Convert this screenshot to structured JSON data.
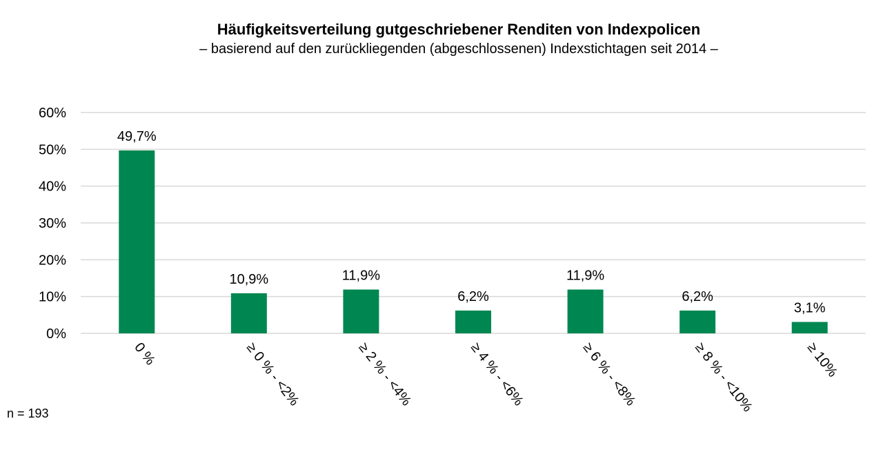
{
  "chart_data": {
    "type": "bar",
    "title": "Häufigkeitsverteilung gutgeschriebener Renditen von Indexpolicen",
    "subtitle": "– basierend auf den zurückliegenden (abgeschlossenen) Indexstichtagen seit 2014 –",
    "categories": [
      "0 %",
      "≥ 0 % - <2%",
      "≥ 2 % - <4%",
      "≥ 4 % - <6%",
      "≥ 6 % - <8%",
      "≥ 8 % - <10%",
      "≥ 10%"
    ],
    "values": [
      49.7,
      10.9,
      11.9,
      6.2,
      11.9,
      6.2,
      3.1
    ],
    "data_labels": [
      "49,7%",
      "10,9%",
      "11,9%",
      "6,2%",
      "11,9%",
      "6,2%",
      "3,1%"
    ],
    "yticks": [
      0,
      10,
      20,
      30,
      40,
      50,
      60
    ],
    "ytick_labels": [
      "0%",
      "10%",
      "20%",
      "30%",
      "40%",
      "50%",
      "60%"
    ],
    "ylim": [
      0,
      60
    ],
    "grid": true,
    "bar_color": "#008751",
    "grid_color": "#d9d9d9",
    "xlabel": "",
    "ylabel": ""
  },
  "note": "n = 193"
}
